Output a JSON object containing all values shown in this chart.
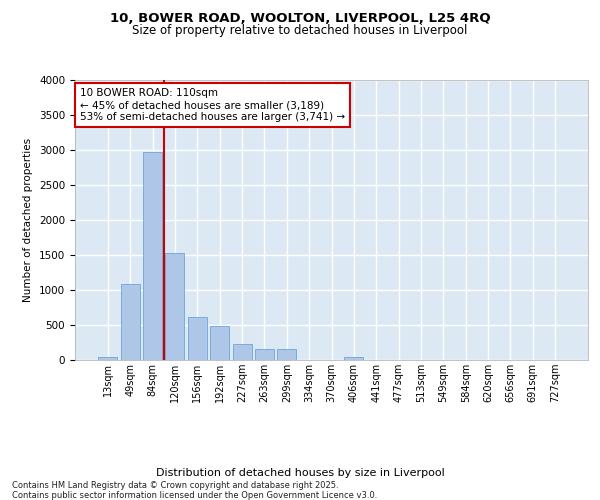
{
  "title_line1": "10, BOWER ROAD, WOOLTON, LIVERPOOL, L25 4RQ",
  "title_line2": "Size of property relative to detached houses in Liverpool",
  "xlabel": "Distribution of detached houses by size in Liverpool",
  "ylabel": "Number of detached properties",
  "categories": [
    "13sqm",
    "49sqm",
    "84sqm",
    "120sqm",
    "156sqm",
    "192sqm",
    "227sqm",
    "263sqm",
    "299sqm",
    "334sqm",
    "370sqm",
    "406sqm",
    "441sqm",
    "477sqm",
    "513sqm",
    "549sqm",
    "584sqm",
    "620sqm",
    "656sqm",
    "691sqm",
    "727sqm"
  ],
  "values": [
    50,
    1090,
    2970,
    1530,
    610,
    490,
    230,
    160,
    160,
    0,
    0,
    50,
    0,
    0,
    0,
    0,
    0,
    0,
    0,
    0,
    0
  ],
  "bar_color": "#aec6e8",
  "bar_edge_color": "#5b9bd5",
  "vline_color": "#cc0000",
  "vline_x_index": 2.5,
  "annotation_text": "10 BOWER ROAD: 110sqm\n← 45% of detached houses are smaller (3,189)\n53% of semi-detached houses are larger (3,741) →",
  "annotation_box_color": "#ffffff",
  "annotation_box_edge": "#cc0000",
  "ylim": [
    0,
    4000
  ],
  "yticks": [
    0,
    500,
    1000,
    1500,
    2000,
    2500,
    3000,
    3500,
    4000
  ],
  "background_color": "#dce9f5",
  "grid_color": "#ffffff",
  "footer_line1": "Contains HM Land Registry data © Crown copyright and database right 2025.",
  "footer_line2": "Contains public sector information licensed under the Open Government Licence v3.0."
}
